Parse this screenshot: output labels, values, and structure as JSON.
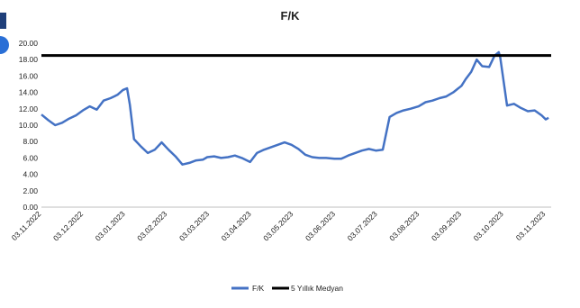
{
  "chart_data": {
    "type": "line",
    "title": "F/K",
    "xlabel": "",
    "ylabel": "",
    "ylim": [
      0,
      20
    ],
    "yticks": [
      "0.00",
      "2.00",
      "4.00",
      "6.00",
      "8.00",
      "10.00",
      "12.00",
      "14.00",
      "16.00",
      "18.00",
      "20.00"
    ],
    "xticks": [
      "03.11.2022",
      "03.12.2022",
      "03.01.2023",
      "03.02.2023",
      "03.03.2023",
      "03.04.2023",
      "03.05.2023",
      "03.06.2023",
      "03.07.2023",
      "03.08.2023",
      "03.09.2023",
      "03.10.2023",
      "03.11.2023"
    ],
    "grid": false,
    "legend_position": "bottom",
    "colors": {
      "fk": "#4472c4",
      "median": "#000000"
    },
    "series": [
      {
        "name": "F/K",
        "x": [
          "2022-11-03",
          "2022-11-08",
          "2022-11-13",
          "2022-11-18",
          "2022-11-23",
          "2022-11-28",
          "2022-12-03",
          "2022-12-08",
          "2022-12-13",
          "2022-12-18",
          "2022-12-23",
          "2022-12-28",
          "2023-01-01",
          "2023-01-04",
          "2023-01-06",
          "2023-01-09",
          "2023-01-14",
          "2023-01-19",
          "2023-01-24",
          "2023-01-29",
          "2023-02-03",
          "2023-02-08",
          "2023-02-13",
          "2023-02-18",
          "2023-02-23",
          "2023-02-28",
          "2023-03-03",
          "2023-03-08",
          "2023-03-13",
          "2023-03-18",
          "2023-03-23",
          "2023-03-28",
          "2023-04-03",
          "2023-04-08",
          "2023-04-13",
          "2023-04-18",
          "2023-04-23",
          "2023-04-28",
          "2023-05-03",
          "2023-05-08",
          "2023-05-13",
          "2023-05-18",
          "2023-05-23",
          "2023-05-28",
          "2023-06-03",
          "2023-06-08",
          "2023-06-13",
          "2023-06-18",
          "2023-06-23",
          "2023-06-28",
          "2023-07-03",
          "2023-07-08",
          "2023-07-13",
          "2023-07-18",
          "2023-07-23",
          "2023-07-28",
          "2023-08-03",
          "2023-08-08",
          "2023-08-13",
          "2023-08-18",
          "2023-08-23",
          "2023-08-28",
          "2023-09-03",
          "2023-09-06",
          "2023-09-10",
          "2023-09-14",
          "2023-09-18",
          "2023-09-23",
          "2023-09-27",
          "2023-09-30",
          "2023-10-01",
          "2023-10-06",
          "2023-10-11",
          "2023-10-16",
          "2023-10-21",
          "2023-10-26",
          "2023-10-31",
          "2023-11-03",
          "2023-11-05"
        ],
        "values": [
          11.3,
          10.6,
          10.0,
          10.3,
          10.8,
          11.2,
          11.8,
          12.3,
          11.9,
          13.0,
          13.3,
          13.7,
          14.3,
          14.5,
          12.5,
          8.3,
          7.4,
          6.6,
          7.0,
          7.9,
          7.0,
          6.2,
          5.2,
          5.4,
          5.7,
          5.8,
          6.1,
          6.2,
          6.0,
          6.1,
          6.3,
          6.0,
          5.5,
          6.6,
          7.0,
          7.3,
          7.6,
          7.9,
          7.6,
          7.1,
          6.4,
          6.1,
          6.0,
          6.0,
          5.9,
          5.9,
          6.3,
          6.6,
          6.9,
          7.1,
          6.9,
          7.0,
          11.0,
          11.5,
          11.8,
          12.0,
          12.3,
          12.8,
          13.0,
          13.3,
          13.5,
          14.0,
          14.8,
          15.6,
          16.5,
          18.0,
          17.2,
          17.1,
          18.5,
          18.9,
          18.3,
          12.4,
          12.6,
          12.1,
          11.7,
          11.8,
          11.2,
          10.7,
          10.9
        ]
      },
      {
        "name": "5 Yıllık Medyan",
        "values": [
          18.5
        ]
      }
    ]
  }
}
